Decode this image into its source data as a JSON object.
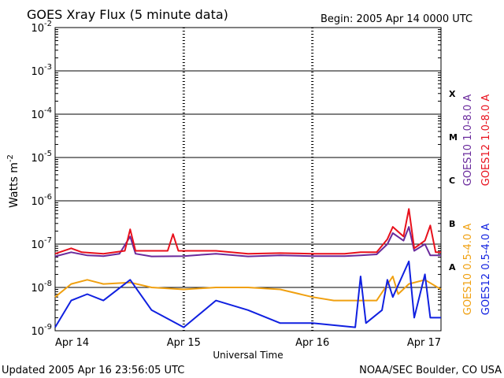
{
  "header": {
    "title": "GOES Xray Flux (5 minute data)",
    "begin": "Begin:  2005 Apr 14 0000 UTC"
  },
  "footer": {
    "updated": "Updated 2005 Apr 16 23:56:05 UTC",
    "source": "NOAA/SEC Boulder, CO USA"
  },
  "chart_data": {
    "type": "line",
    "title": "GOES Xray Flux (5 minute data)",
    "xlabel": "Universal Time",
    "ylabel": "Watts m",
    "ylabel_superscript": "-2",
    "y_scale": "log",
    "ylim": [
      1e-09,
      0.01
    ],
    "y_ticks": [
      {
        "value": 0.01,
        "base": "10",
        "exp": "-2"
      },
      {
        "value": 0.001,
        "base": "10",
        "exp": "-3"
      },
      {
        "value": 0.0001,
        "base": "10",
        "exp": "-4"
      },
      {
        "value": 1e-05,
        "base": "10",
        "exp": "-5"
      },
      {
        "value": 1e-06,
        "base": "10",
        "exp": "-6"
      },
      {
        "value": 1e-07,
        "base": "10",
        "exp": "-7"
      },
      {
        "value": 1e-08,
        "base": "10",
        "exp": "-8"
      },
      {
        "value": 1e-09,
        "base": "10",
        "exp": "-9"
      }
    ],
    "xlim": [
      "2005-04-14 00:00",
      "2005-04-17 00:00"
    ],
    "x_ticks": [
      {
        "value": "2005-04-14 00:00",
        "label": "Apr 14"
      },
      {
        "value": "2005-04-15 00:00",
        "label": "Apr 15"
      },
      {
        "value": "2005-04-16 00:00",
        "label": "Apr 16"
      },
      {
        "value": "2005-04-17 00:00",
        "label": "Apr 17"
      }
    ],
    "grid": true,
    "flare_classes": [
      {
        "label": "X",
        "value": 0.0003
      },
      {
        "label": "M",
        "value": 3e-05
      },
      {
        "label": "C",
        "value": 3e-06
      },
      {
        "label": "B",
        "value": 3e-07
      },
      {
        "label": "A",
        "value": 3e-08
      }
    ],
    "legend_placement": "right",
    "series": [
      {
        "name": "GOES10 1.0-8.0 A",
        "color": "#6a2a9c",
        "points": [
          [
            "2005-04-14 00:00",
            5.2e-08
          ],
          [
            "2005-04-14 03:00",
            6.5e-08
          ],
          [
            "2005-04-14 06:00",
            5.5e-08
          ],
          [
            "2005-04-14 09:00",
            5.3e-08
          ],
          [
            "2005-04-14 12:00",
            6e-08
          ],
          [
            "2005-04-14 14:00",
            1.5e-07
          ],
          [
            "2005-04-14 15:00",
            6e-08
          ],
          [
            "2005-04-14 18:00",
            5.2e-08
          ],
          [
            "2005-04-15 00:00",
            5.3e-08
          ],
          [
            "2005-04-15 06:00",
            6e-08
          ],
          [
            "2005-04-15 12:00",
            5.2e-08
          ],
          [
            "2005-04-15 18:00",
            5.5e-08
          ],
          [
            "2005-04-16 00:00",
            5.3e-08
          ],
          [
            "2005-04-16 06:00",
            5.3e-08
          ],
          [
            "2005-04-16 09:00",
            5.5e-08
          ],
          [
            "2005-04-16 12:00",
            5.8e-08
          ],
          [
            "2005-04-16 14:00",
            1e-07
          ],
          [
            "2005-04-16 15:00",
            1.8e-07
          ],
          [
            "2005-04-16 17:00",
            1.2e-07
          ],
          [
            "2005-04-16 18:00",
            2.5e-07
          ],
          [
            "2005-04-16 19:00",
            7e-08
          ],
          [
            "2005-04-16 21:00",
            1e-07
          ],
          [
            "2005-04-16 22:00",
            5.5e-08
          ],
          [
            "2005-04-17 00:00",
            5.5e-08
          ]
        ]
      },
      {
        "name": "GOES12 1.0-8.0 A",
        "color": "#e8101c",
        "points": [
          [
            "2005-04-14 00:00",
            6e-08
          ],
          [
            "2005-04-14 03:00",
            8e-08
          ],
          [
            "2005-04-14 05:00",
            6.5e-08
          ],
          [
            "2005-04-14 09:00",
            6e-08
          ],
          [
            "2005-04-14 13:00",
            7e-08
          ],
          [
            "2005-04-14 14:00",
            2.2e-07
          ],
          [
            "2005-04-14 15:00",
            7e-08
          ],
          [
            "2005-04-14 21:00",
            7e-08
          ],
          [
            "2005-04-14 22:00",
            1.7e-07
          ],
          [
            "2005-04-14 23:00",
            7e-08
          ],
          [
            "2005-04-15 06:00",
            7e-08
          ],
          [
            "2005-04-15 12:00",
            6e-08
          ],
          [
            "2005-04-15 18:00",
            6.2e-08
          ],
          [
            "2005-04-16 00:00",
            6e-08
          ],
          [
            "2005-04-16 06:00",
            6e-08
          ],
          [
            "2005-04-16 09:00",
            6.5e-08
          ],
          [
            "2005-04-16 12:00",
            6.5e-08
          ],
          [
            "2005-04-16 14:00",
            1.3e-07
          ],
          [
            "2005-04-16 15:00",
            2.5e-07
          ],
          [
            "2005-04-16 17:00",
            1.5e-07
          ],
          [
            "2005-04-16 18:00",
            6.5e-07
          ],
          [
            "2005-04-16 19:00",
            8e-08
          ],
          [
            "2005-04-16 21:00",
            1.2e-07
          ],
          [
            "2005-04-16 22:00",
            2.7e-07
          ],
          [
            "2005-04-16 23:00",
            6.5e-08
          ],
          [
            "2005-04-17 00:00",
            6.5e-08
          ]
        ]
      },
      {
        "name": "GOES10 0.5-4.0 A",
        "color": "#f0a010",
        "points": [
          [
            "2005-04-14 00:00",
            6e-09
          ],
          [
            "2005-04-14 03:00",
            1.2e-08
          ],
          [
            "2005-04-14 06:00",
            1.5e-08
          ],
          [
            "2005-04-14 09:00",
            1.2e-08
          ],
          [
            "2005-04-14 14:00",
            1.3e-08
          ],
          [
            "2005-04-14 18:00",
            1e-08
          ],
          [
            "2005-04-15 00:00",
            9e-09
          ],
          [
            "2005-04-15 06:00",
            1e-08
          ],
          [
            "2005-04-15 12:00",
            1e-08
          ],
          [
            "2005-04-15 18:00",
            9e-09
          ],
          [
            "2005-04-16 00:00",
            6e-09
          ],
          [
            "2005-04-16 04:00",
            5e-09
          ],
          [
            "2005-04-16 12:00",
            5e-09
          ],
          [
            "2005-04-16 15:00",
            1.8e-08
          ],
          [
            "2005-04-16 16:00",
            7e-09
          ],
          [
            "2005-04-16 18:00",
            1.2e-08
          ],
          [
            "2005-04-16 21:00",
            1.5e-08
          ],
          [
            "2005-04-17 00:00",
            9e-09
          ]
        ]
      },
      {
        "name": "GOES12 0.5-4.0 A",
        "color": "#1020e0",
        "points": [
          [
            "2005-04-14 00:00",
            1.2e-09
          ],
          [
            "2005-04-14 03:00",
            5e-09
          ],
          [
            "2005-04-14 06:00",
            7e-09
          ],
          [
            "2005-04-14 09:00",
            5e-09
          ],
          [
            "2005-04-14 14:00",
            1.5e-08
          ],
          [
            "2005-04-14 18:00",
            3e-09
          ],
          [
            "2005-04-15 00:00",
            1.2e-09
          ],
          [
            "2005-04-15 06:00",
            5e-09
          ],
          [
            "2005-04-15 12:00",
            3e-09
          ],
          [
            "2005-04-15 18:00",
            1.5e-09
          ],
          [
            "2005-04-16 00:00",
            1.5e-09
          ],
          [
            "2005-04-16 08:00",
            1.2e-09
          ],
          [
            "2005-04-16 09:00",
            1.8e-08
          ],
          [
            "2005-04-16 10:00",
            1.5e-09
          ],
          [
            "2005-04-16 13:00",
            3e-09
          ],
          [
            "2005-04-16 14:00",
            1.5e-08
          ],
          [
            "2005-04-16 15:00",
            6e-09
          ],
          [
            "2005-04-16 18:00",
            4e-08
          ],
          [
            "2005-04-16 19:00",
            2e-09
          ],
          [
            "2005-04-16 21:00",
            2e-08
          ],
          [
            "2005-04-16 22:00",
            2e-09
          ],
          [
            "2005-04-17 00:00",
            2e-09
          ]
        ]
      }
    ]
  }
}
